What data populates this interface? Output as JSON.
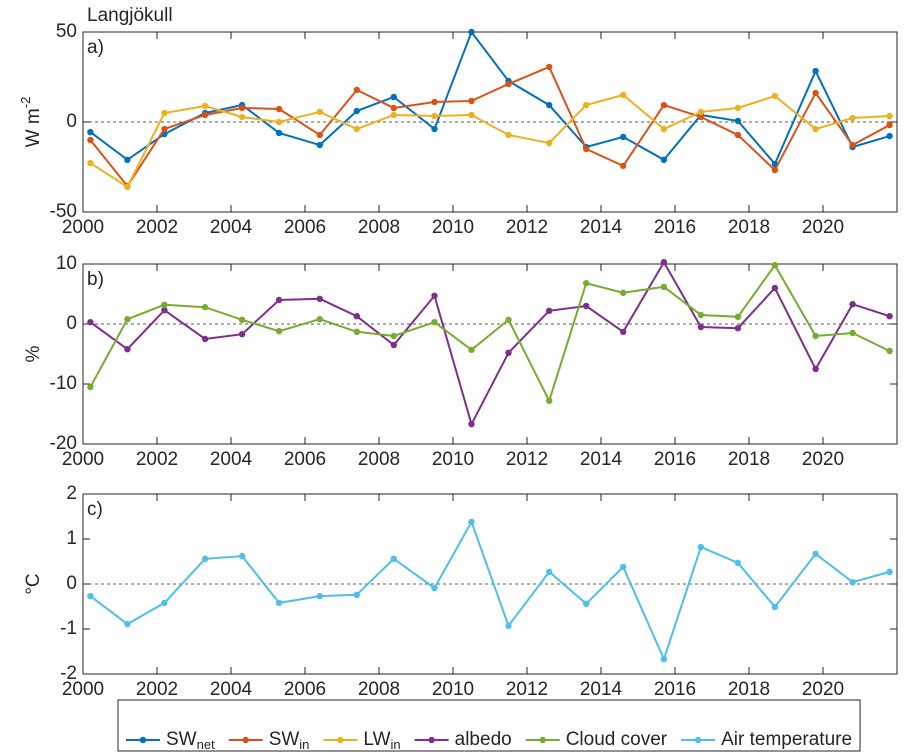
{
  "chart_data": [
    {
      "type": "line",
      "title": "Langjökull",
      "panel_label": "a)",
      "ylabel": "W m",
      "ylabel_sup": "-2",
      "xlim": [
        2000,
        2022
      ],
      "xticks": [
        2000,
        2002,
        2004,
        2006,
        2008,
        2010,
        2012,
        2014,
        2016,
        2018,
        2020
      ],
      "ylim": [
        -50,
        50
      ],
      "yticks": [
        -50,
        0,
        50
      ],
      "x": [
        2000.2,
        2001.2,
        2002.2,
        2003.3,
        2004.3,
        2005.3,
        2006.4,
        2007.4,
        2008.4,
        2009.5,
        2010.5,
        2011.5,
        2012.6,
        2013.6,
        2014.6,
        2015.7,
        2016.7,
        2017.7,
        2018.7,
        2019.8,
        2020.8,
        2021.8
      ],
      "series": [
        {
          "name": "SW",
          "subscript": "net",
          "color": "#0072BD",
          "values": [
            -5.6,
            -21,
            -6.7,
            5,
            9.4,
            -6.1,
            -12.8,
            6.1,
            13.9,
            -3.9,
            50,
            22.8,
            9.4,
            -13.9,
            -8.3,
            -21,
            3.9,
            0.6,
            -23.3,
            28.3,
            -13.9,
            -7.8
          ]
        },
        {
          "name": "SW",
          "subscript": "in",
          "color": "#D95319",
          "values": [
            -10,
            -35.6,
            -3.9,
            3.9,
            7.8,
            7.2,
            -7.2,
            17.8,
            7.8,
            11.1,
            11.7,
            21.1,
            30.6,
            -15,
            -24.4,
            9.4,
            2.8,
            -7.2,
            -26.7,
            16.1,
            -12.8,
            -1.7
          ]
        },
        {
          "name": "LW",
          "subscript": "in",
          "color": "#EDB120",
          "values": [
            -22.8,
            -36.1,
            5,
            8.9,
            2.8,
            0,
            5.6,
            -3.9,
            3.9,
            3.3,
            3.9,
            -7.2,
            -11.7,
            9.4,
            15,
            -3.9,
            5.6,
            7.8,
            14.4,
            -3.9,
            2.2,
            3.3
          ]
        }
      ]
    },
    {
      "type": "line",
      "panel_label": "b)",
      "ylabel": "%",
      "xlim": [
        2000,
        2022
      ],
      "xticks": [
        2000,
        2002,
        2004,
        2006,
        2008,
        2010,
        2012,
        2014,
        2016,
        2018,
        2020
      ],
      "ylim": [
        -20,
        10
      ],
      "yticks": [
        -20,
        -10,
        0,
        10
      ],
      "x": [
        2000.2,
        2001.2,
        2002.2,
        2003.3,
        2004.3,
        2005.3,
        2006.4,
        2007.4,
        2008.4,
        2009.5,
        2010.5,
        2011.5,
        2012.6,
        2013.6,
        2014.6,
        2015.7,
        2016.7,
        2017.7,
        2018.7,
        2019.8,
        2020.8,
        2021.8
      ],
      "series": [
        {
          "name": "albedo",
          "color": "#7E2F8E",
          "values": [
            0.3,
            -4.2,
            2.3,
            -2.5,
            -1.7,
            4,
            4.2,
            1.3,
            -3.5,
            4.7,
            -16.7,
            -4.8,
            2.2,
            3,
            -1.3,
            10.3,
            -0.5,
            -0.7,
            6,
            -7.5,
            3.3,
            1.3
          ]
        },
        {
          "name": "Cloud cover",
          "color": "#77AC30",
          "values": [
            -10.5,
            0.8,
            3.2,
            2.8,
            0.7,
            -1.2,
            0.8,
            -1.3,
            -2,
            0.3,
            -4.3,
            0.7,
            -12.8,
            6.8,
            5.2,
            6.2,
            1.5,
            1.2,
            9.8,
            -2,
            -1.5,
            -4.5
          ]
        }
      ]
    },
    {
      "type": "line",
      "panel_label": "c)",
      "ylabel": "°C",
      "xlim": [
        2000,
        2022
      ],
      "xticks": [
        2000,
        2002,
        2004,
        2006,
        2008,
        2010,
        2012,
        2014,
        2016,
        2018,
        2020
      ],
      "ylim": [
        -2,
        2
      ],
      "yticks": [
        -2,
        -1,
        0,
        1,
        2
      ],
      "x": [
        2000.2,
        2001.2,
        2002.2,
        2003.3,
        2004.3,
        2005.3,
        2006.4,
        2007.4,
        2008.4,
        2009.5,
        2010.5,
        2011.5,
        2012.6,
        2013.6,
        2014.6,
        2015.7,
        2016.7,
        2017.7,
        2018.7,
        2019.8,
        2020.8,
        2021.8
      ],
      "series": [
        {
          "name": "Air temperature",
          "color": "#4DBEEE",
          "values": [
            -0.27,
            -0.89,
            -0.42,
            0.56,
            0.62,
            -0.42,
            -0.27,
            -0.24,
            0.56,
            -0.09,
            1.38,
            -0.93,
            0.27,
            -0.44,
            0.38,
            -1.67,
            0.82,
            0.47,
            -0.51,
            0.67,
            0.04,
            0.27
          ]
        }
      ]
    }
  ]
}
